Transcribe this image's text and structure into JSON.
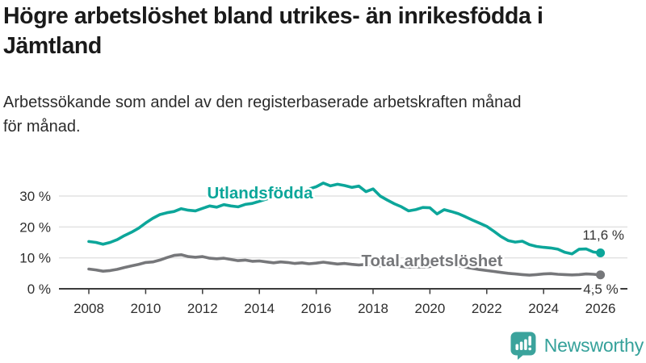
{
  "header": {
    "title": "Högre arbetslöshet bland utrikes- än inrikesfödda i\nJämtland",
    "subtitle": "Arbetssökande som andel av den registerbaserade arbetskraften månad\nför månad."
  },
  "branding": {
    "logo_text": "Newsworthy",
    "logo_color": "#3BA39C"
  },
  "chart_data": {
    "type": "line",
    "title": "Högre arbetslöshet bland utrikes- än inrikesfödda i Jämtland",
    "subtitle": "Arbetssökande som andel av den registerbaserade arbetskraften månad för månad.",
    "xlabel": "",
    "ylabel": "",
    "grid": "horizontal",
    "legend_position": "inline-labels",
    "x_axis": {
      "range": [
        2008,
        2026
      ],
      "ticks": [
        2008,
        2010,
        2012,
        2014,
        2016,
        2018,
        2020,
        2022,
        2024,
        2026
      ],
      "tick_labels": [
        "2008",
        "2010",
        "2012",
        "2014",
        "2016",
        "2018",
        "2020",
        "2022",
        "2024",
        "2026"
      ]
    },
    "y_axis": {
      "range": [
        0,
        35
      ],
      "ticks": [
        0,
        10,
        20,
        30
      ],
      "tick_labels": [
        "0 %",
        "10 %",
        "20 %",
        "30 %"
      ],
      "gridlines": [
        10,
        20,
        30
      ],
      "unit": "%"
    },
    "series": [
      {
        "id": "utlandsfodda",
        "name": "Utlandsfödda",
        "color": "#0CA69A",
        "end_label": "11,6 %",
        "end_value": 11.6,
        "points": [
          [
            2008.0,
            15.3
          ],
          [
            2008.25,
            15.0
          ],
          [
            2008.5,
            14.4
          ],
          [
            2008.75,
            15.0
          ],
          [
            2009.0,
            15.9
          ],
          [
            2009.25,
            17.2
          ],
          [
            2009.5,
            18.3
          ],
          [
            2009.75,
            19.6
          ],
          [
            2010.0,
            21.3
          ],
          [
            2010.25,
            22.8
          ],
          [
            2010.5,
            24.0
          ],
          [
            2010.75,
            24.6
          ],
          [
            2011.0,
            25.0
          ],
          [
            2011.25,
            25.9
          ],
          [
            2011.5,
            25.4
          ],
          [
            2011.75,
            25.2
          ],
          [
            2012.0,
            26.0
          ],
          [
            2012.25,
            26.8
          ],
          [
            2012.5,
            26.4
          ],
          [
            2012.75,
            27.2
          ],
          [
            2013.0,
            26.8
          ],
          [
            2013.25,
            26.5
          ],
          [
            2013.5,
            27.3
          ],
          [
            2013.75,
            27.6
          ],
          [
            2014.0,
            28.3
          ],
          [
            2014.25,
            29.0
          ],
          [
            2014.5,
            29.6
          ],
          [
            2014.75,
            30.2
          ],
          [
            2015.0,
            31.0
          ],
          [
            2015.25,
            31.8
          ],
          [
            2015.5,
            31.4
          ],
          [
            2015.75,
            32.3
          ],
          [
            2016.0,
            33.0
          ],
          [
            2016.25,
            34.2
          ],
          [
            2016.5,
            33.3
          ],
          [
            2016.75,
            33.8
          ],
          [
            2017.0,
            33.4
          ],
          [
            2017.25,
            32.8
          ],
          [
            2017.5,
            33.2
          ],
          [
            2017.75,
            31.4
          ],
          [
            2018.0,
            32.3
          ],
          [
            2018.25,
            30.0
          ],
          [
            2018.5,
            28.7
          ],
          [
            2018.75,
            27.5
          ],
          [
            2019.0,
            26.5
          ],
          [
            2019.25,
            25.2
          ],
          [
            2019.5,
            25.6
          ],
          [
            2019.75,
            26.3
          ],
          [
            2020.0,
            26.2
          ],
          [
            2020.25,
            24.2
          ],
          [
            2020.5,
            25.6
          ],
          [
            2020.75,
            25.0
          ],
          [
            2021.0,
            24.3
          ],
          [
            2021.25,
            23.3
          ],
          [
            2021.5,
            22.2
          ],
          [
            2021.75,
            21.2
          ],
          [
            2022.0,
            20.2
          ],
          [
            2022.25,
            18.6
          ],
          [
            2022.5,
            16.9
          ],
          [
            2022.75,
            15.6
          ],
          [
            2023.0,
            15.1
          ],
          [
            2023.25,
            15.4
          ],
          [
            2023.5,
            14.3
          ],
          [
            2023.75,
            13.7
          ],
          [
            2024.0,
            13.4
          ],
          [
            2024.25,
            13.2
          ],
          [
            2024.5,
            12.8
          ],
          [
            2024.75,
            11.8
          ],
          [
            2025.0,
            11.3
          ],
          [
            2025.25,
            12.8
          ],
          [
            2025.5,
            12.9
          ],
          [
            2025.75,
            11.9
          ],
          [
            2026.0,
            11.6
          ]
        ]
      },
      {
        "id": "total-arbetsloshet",
        "name": "Total arbetslöshet",
        "color": "#76777A",
        "end_label": "4,5 %",
        "end_value": 4.5,
        "points": [
          [
            2008.0,
            6.4
          ],
          [
            2008.25,
            6.1
          ],
          [
            2008.5,
            5.7
          ],
          [
            2008.75,
            5.9
          ],
          [
            2009.0,
            6.3
          ],
          [
            2009.25,
            6.9
          ],
          [
            2009.5,
            7.4
          ],
          [
            2009.75,
            7.9
          ],
          [
            2010.0,
            8.5
          ],
          [
            2010.25,
            8.7
          ],
          [
            2010.5,
            9.3
          ],
          [
            2010.75,
            10.1
          ],
          [
            2011.0,
            10.8
          ],
          [
            2011.25,
            11.0
          ],
          [
            2011.5,
            10.4
          ],
          [
            2011.75,
            10.2
          ],
          [
            2012.0,
            10.4
          ],
          [
            2012.25,
            9.9
          ],
          [
            2012.5,
            9.7
          ],
          [
            2012.75,
            9.9
          ],
          [
            2013.0,
            9.5
          ],
          [
            2013.25,
            9.1
          ],
          [
            2013.5,
            9.3
          ],
          [
            2013.75,
            8.9
          ],
          [
            2014.0,
            9.0
          ],
          [
            2014.25,
            8.7
          ],
          [
            2014.5,
            8.4
          ],
          [
            2014.75,
            8.7
          ],
          [
            2015.0,
            8.5
          ],
          [
            2015.25,
            8.2
          ],
          [
            2015.5,
            8.4
          ],
          [
            2015.75,
            8.1
          ],
          [
            2016.0,
            8.3
          ],
          [
            2016.25,
            8.6
          ],
          [
            2016.5,
            8.3
          ],
          [
            2016.75,
            8.0
          ],
          [
            2017.0,
            8.2
          ],
          [
            2017.25,
            7.9
          ],
          [
            2017.5,
            7.7
          ],
          [
            2017.75,
            7.9
          ],
          [
            2018.0,
            7.7
          ],
          [
            2018.25,
            7.4
          ],
          [
            2018.5,
            7.6
          ],
          [
            2018.75,
            7.3
          ],
          [
            2019.0,
            7.2
          ],
          [
            2019.25,
            7.0
          ],
          [
            2019.5,
            7.1
          ],
          [
            2019.75,
            7.0
          ],
          [
            2020.0,
            7.2
          ],
          [
            2020.25,
            7.8
          ],
          [
            2020.5,
            8.0
          ],
          [
            2020.75,
            7.7
          ],
          [
            2021.0,
            7.4
          ],
          [
            2021.25,
            7.0
          ],
          [
            2021.5,
            6.6
          ],
          [
            2021.75,
            6.2
          ],
          [
            2022.0,
            5.9
          ],
          [
            2022.25,
            5.6
          ],
          [
            2022.5,
            5.3
          ],
          [
            2022.75,
            5.0
          ],
          [
            2023.0,
            4.8
          ],
          [
            2023.25,
            4.6
          ],
          [
            2023.5,
            4.4
          ],
          [
            2023.75,
            4.6
          ],
          [
            2024.0,
            4.8
          ],
          [
            2024.25,
            4.9
          ],
          [
            2024.5,
            4.7
          ],
          [
            2024.75,
            4.6
          ],
          [
            2025.0,
            4.5
          ],
          [
            2025.25,
            4.6
          ],
          [
            2025.5,
            4.8
          ],
          [
            2025.75,
            4.7
          ],
          [
            2026.0,
            4.5
          ]
        ]
      }
    ]
  }
}
